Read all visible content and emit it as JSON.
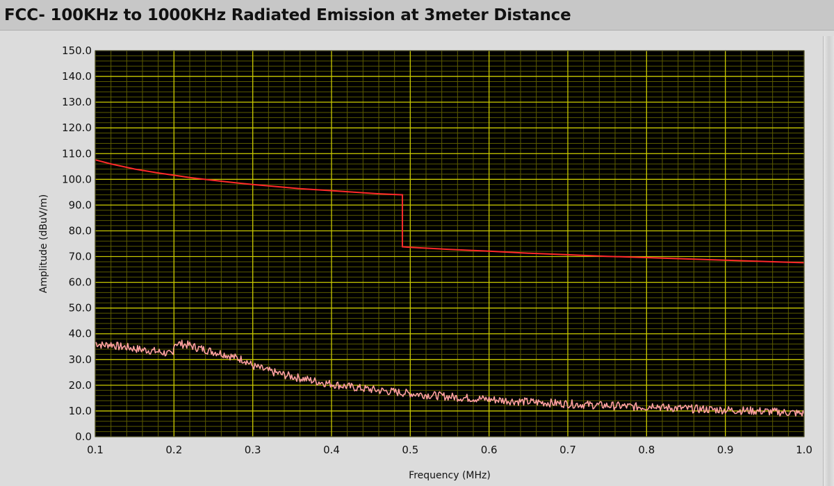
{
  "window": {
    "title": "FCC- 100KHz to 1000KHz Radiated Emission at 3meter Distance"
  },
  "colors": {
    "panel_bg": "#dcdcdc",
    "plot_bg": "#000000",
    "major_grid": "#c8c800",
    "minor_grid": "#5b5b00",
    "limit_line": "#ff2a2a",
    "measurement": "#ffa0a0"
  },
  "chart_data": {
    "type": "line",
    "title": "",
    "xlabel": "Frequency (MHz)",
    "ylabel": "Amplitude (dBuV/m)",
    "xlim": [
      0.1,
      1.0
    ],
    "ylim": [
      0,
      150
    ],
    "x_ticks": [
      "0.1",
      "0.2",
      "0.3",
      "0.4",
      "0.5",
      "0.6",
      "0.7",
      "0.8",
      "0.9",
      "1.0"
    ],
    "y_ticks": [
      "0.0",
      "10.0",
      "20.0",
      "30.0",
      "40.0",
      "50.0",
      "60.0",
      "70.0",
      "80.0",
      "90.0",
      "100.0",
      "110.0",
      "120.0",
      "130.0",
      "140.0",
      "150.0"
    ],
    "grid": true,
    "legend": "none",
    "series": [
      {
        "role": "limit",
        "color": "#ff2a2a",
        "x": [
          0.1,
          0.12,
          0.15,
          0.18,
          0.2,
          0.22,
          0.25,
          0.28,
          0.3,
          0.33,
          0.36,
          0.4,
          0.43,
          0.46,
          0.49,
          0.49,
          0.5,
          0.55,
          0.6,
          0.65,
          0.7,
          0.75,
          0.8,
          0.85,
          0.9,
          0.95,
          1.0
        ],
        "y": [
          107.6,
          106.0,
          104.0,
          102.5,
          101.6,
          100.7,
          99.6,
          98.6,
          98.0,
          97.2,
          96.4,
          95.6,
          95.0,
          94.4,
          94.0,
          73.8,
          73.6,
          72.8,
          72.1,
          71.3,
          70.7,
          70.1,
          69.6,
          69.1,
          68.6,
          68.1,
          67.6
        ]
      },
      {
        "role": "measurement",
        "color": "#ffa0a0",
        "x": [
          0.1,
          0.11,
          0.12,
          0.13,
          0.14,
          0.15,
          0.16,
          0.17,
          0.18,
          0.19,
          0.199,
          0.2,
          0.21,
          0.22,
          0.23,
          0.24,
          0.25,
          0.26,
          0.27,
          0.28,
          0.29,
          0.3,
          0.32,
          0.34,
          0.36,
          0.38,
          0.4,
          0.42,
          0.44,
          0.46,
          0.48,
          0.5,
          0.52,
          0.54,
          0.56,
          0.58,
          0.6,
          0.62,
          0.64,
          0.66,
          0.68,
          0.7,
          0.72,
          0.74,
          0.76,
          0.78,
          0.8,
          0.81,
          0.82,
          0.84,
          0.86,
          0.88,
          0.9,
          0.92,
          0.94,
          0.96,
          0.98,
          1.0
        ],
        "y": [
          36.5,
          35.5,
          36.0,
          35.0,
          34.8,
          34.2,
          33.8,
          33.5,
          33.0,
          32.5,
          31.5,
          36.5,
          36.0,
          35.5,
          34.5,
          33.8,
          33.0,
          32.5,
          31.5,
          30.5,
          29.8,
          27.5,
          25.5,
          24.0,
          22.8,
          21.5,
          20.5,
          19.5,
          18.7,
          18.0,
          17.4,
          16.8,
          16.3,
          15.8,
          15.3,
          14.9,
          14.5,
          14.1,
          13.7,
          13.4,
          13.1,
          12.8,
          12.5,
          12.2,
          12.0,
          11.7,
          11.5,
          12.5,
          11.3,
          11.1,
          10.8,
          10.6,
          10.4,
          10.2,
          10.0,
          9.7,
          9.4,
          9.0
        ]
      }
    ]
  }
}
